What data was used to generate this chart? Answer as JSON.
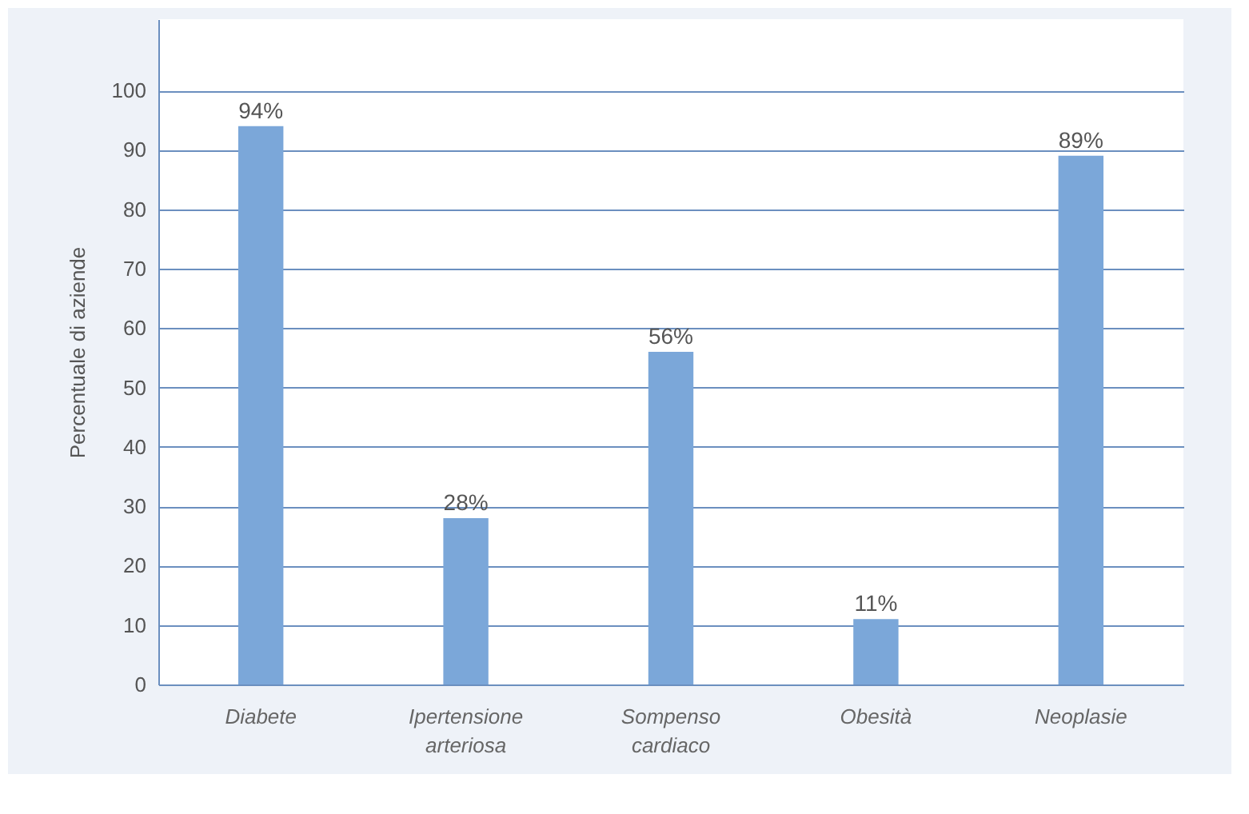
{
  "chart_data": {
    "type": "bar",
    "ylabel": "Percentuale di aziende",
    "categories": [
      "Diabete",
      "Ipertensione arteriosa",
      "Sompenso cardiaco",
      "Obesità",
      "Neoplasie"
    ],
    "values": [
      94,
      28,
      56,
      11,
      89
    ],
    "value_labels": [
      "94%",
      "28%",
      "56%",
      "11%",
      "89%"
    ],
    "color": "#7ba7d9",
    "ylim": [
      0,
      112
    ],
    "yticks": [
      0,
      10,
      20,
      30,
      40,
      50,
      60,
      70,
      80,
      90,
      100
    ],
    "grid": "y"
  }
}
